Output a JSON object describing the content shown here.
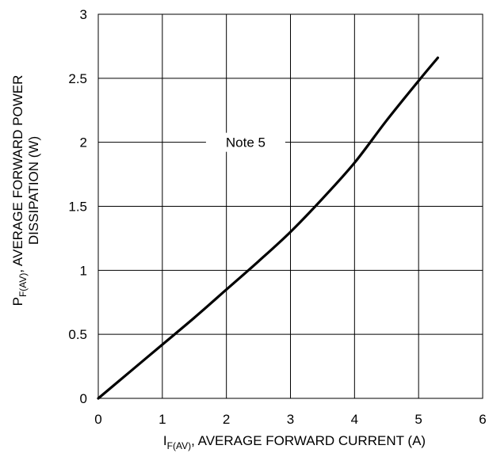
{
  "chart_data": {
    "type": "line",
    "xlabel": {
      "main": "I",
      "sub": "F(AV)",
      "rest": ", AVERAGE FORWARD CURRENT (A)"
    },
    "ylabel": {
      "main": "P",
      "sub": "F(AV)",
      "line1_rest": ", AVERAGE FORWARD POWER",
      "line2": "DISSIPATION (W)"
    },
    "xlim": [
      0,
      6
    ],
    "ylim": [
      0,
      3
    ],
    "xticks": [
      "0",
      "1",
      "2",
      "3",
      "4",
      "5",
      "6"
    ],
    "yticks": [
      "0",
      "0.5",
      "1",
      "1.5",
      "2",
      "2.5",
      "3"
    ],
    "grid": true,
    "series": [
      {
        "color": "#000000",
        "points": [
          [
            0,
            0
          ],
          [
            0.5,
            0.21
          ],
          [
            1.0,
            0.42
          ],
          [
            1.5,
            0.63
          ],
          [
            2.0,
            0.85
          ],
          [
            2.5,
            1.07
          ],
          [
            3.0,
            1.3
          ],
          [
            3.5,
            1.56
          ],
          [
            4.0,
            1.84
          ],
          [
            4.5,
            2.17
          ],
          [
            5.0,
            2.48
          ],
          [
            5.3,
            2.66
          ]
        ]
      }
    ],
    "annotations": [
      {
        "text": "Note 5",
        "x": 2.3,
        "y": 2.0
      }
    ]
  }
}
